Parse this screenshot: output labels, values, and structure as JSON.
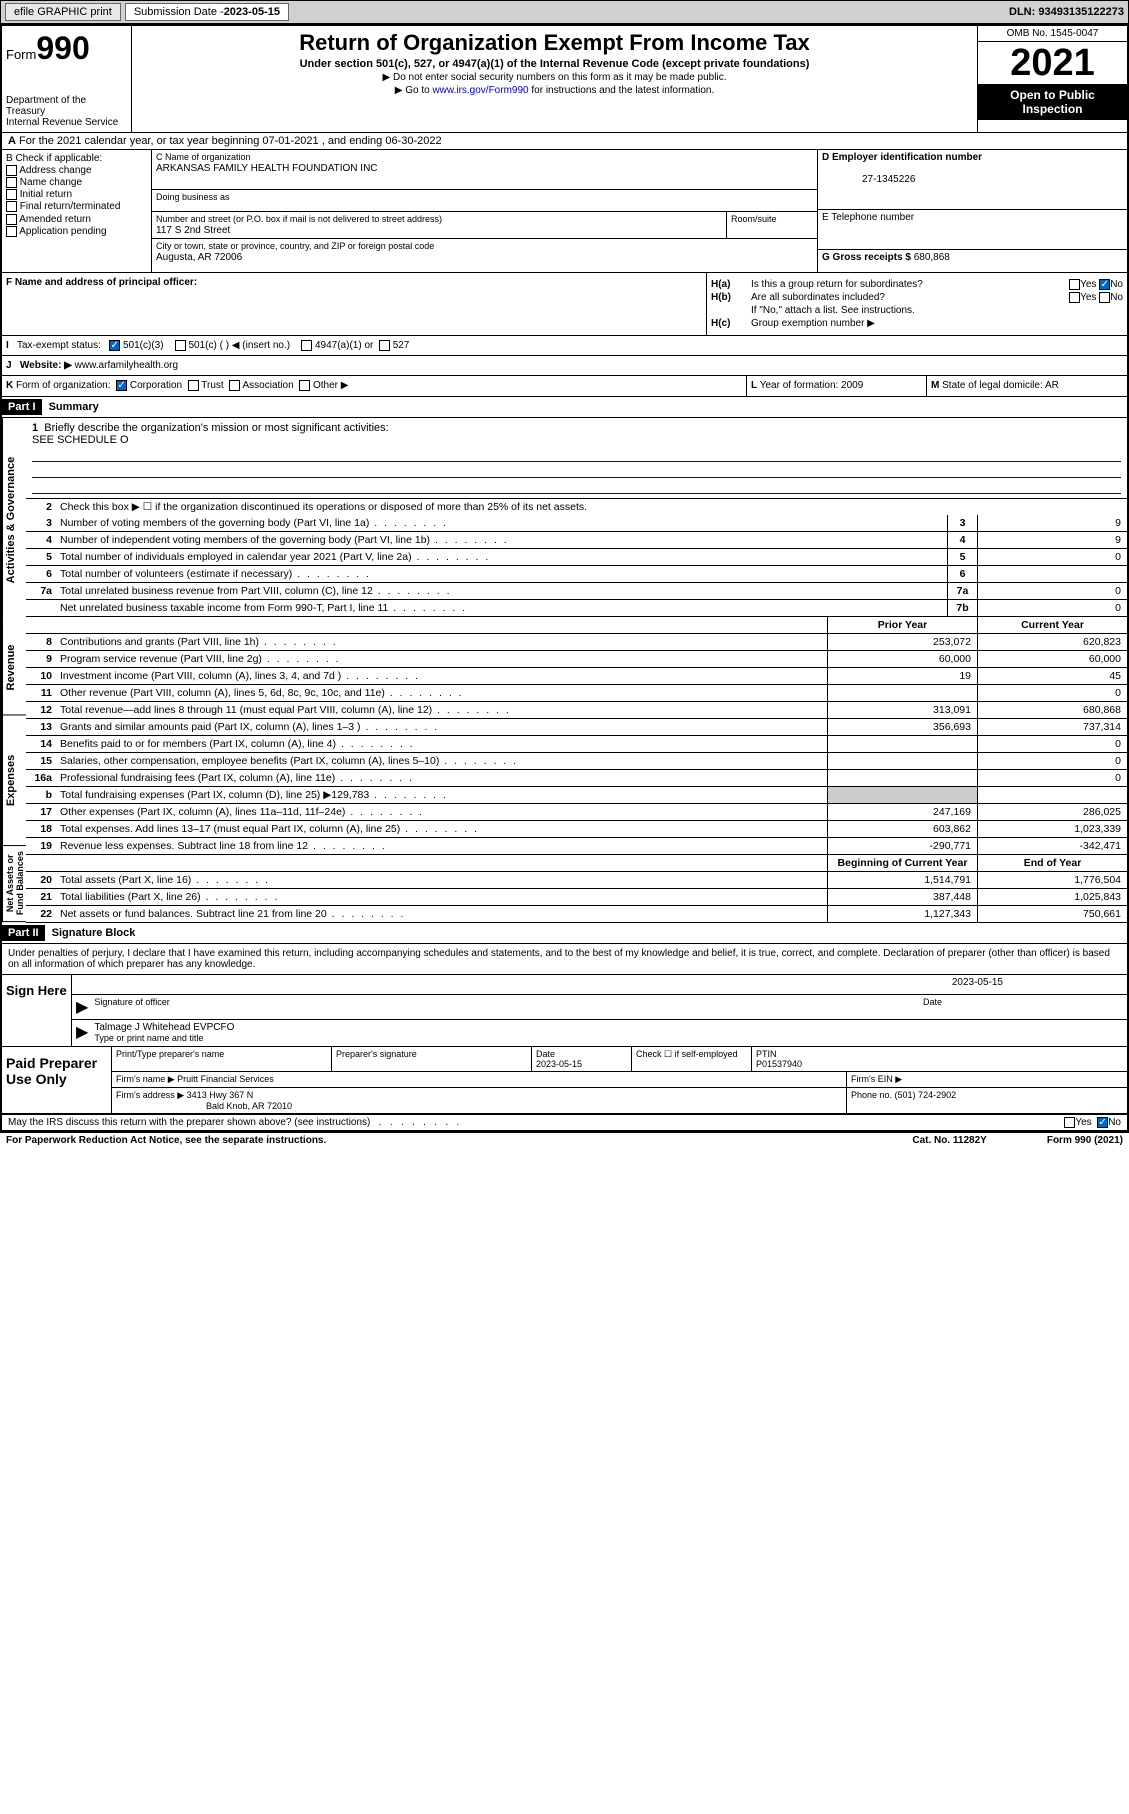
{
  "header": {
    "efile": "efile GRAPHIC print",
    "sub_date_label": "Submission Date - ",
    "sub_date": "2023-05-15",
    "dln": "DLN: 93493135122273"
  },
  "title": {
    "form_label": "Form",
    "form_num": "990",
    "dept": "Department of the Treasury",
    "irs": "Internal Revenue Service",
    "main": "Return of Organization Exempt From Income Tax",
    "sub": "Under section 501(c), 527, or 4947(a)(1) of the Internal Revenue Code (except private foundations)",
    "arrow1": "▶ Do not enter social security numbers on this form as it may be made public.",
    "arrow2_pre": "▶ Go to ",
    "arrow2_link": "www.irs.gov/Form990",
    "arrow2_post": " for instructions and the latest information.",
    "omb": "OMB No. 1545-0047",
    "year": "2021",
    "open_pub": "Open to Public Inspection"
  },
  "row_a": {
    "label": "A",
    "text": "For the 2021 calendar year, or tax year beginning 07-01-2021    , and ending 06-30-2022"
  },
  "section_b": {
    "label": "B Check if applicable:",
    "items": [
      "Address change",
      "Name change",
      "Initial return",
      "Final return/terminated",
      "Amended return",
      "Application pending"
    ]
  },
  "section_c": {
    "name_label": "C Name of organization",
    "name": "ARKANSAS FAMILY HEALTH FOUNDATION INC",
    "dba_label": "Doing business as",
    "street_label": "Number and street (or P.O. box if mail is not delivered to street address)",
    "street": "117 S 2nd Street",
    "room_label": "Room/suite",
    "city_label": "City or town, state or province, country, and ZIP or foreign postal code",
    "city": "Augusta, AR  72006"
  },
  "section_d": {
    "ein_label": "D Employer identification number",
    "ein": "27-1345226",
    "phone_label": "E Telephone number",
    "gross_label": "G Gross receipts $ ",
    "gross": "680,868"
  },
  "section_f": {
    "label": "F  Name and address of principal officer:"
  },
  "section_h": {
    "ha_label": "H(a)",
    "ha_text": "Is this a group return for subordinates?",
    "hb_label": "H(b)",
    "hb_text": "Are all subordinates included?",
    "hb_note": "If \"No,\" attach a list. See instructions.",
    "hc_label": "H(c)",
    "hc_text": "Group exemption number ▶",
    "yes": "Yes",
    "no": "No"
  },
  "section_i": {
    "label": "I",
    "text": "Tax-exempt status:",
    "opts": [
      "501(c)(3)",
      "501(c) (  ) ◀ (insert no.)",
      "4947(a)(1) or",
      "527"
    ]
  },
  "section_j": {
    "label": "J",
    "text": "Website: ▶",
    "value": "www.arfamilyhealth.org"
  },
  "section_k": {
    "label": "K",
    "text": "Form of organization:",
    "opts": [
      "Corporation",
      "Trust",
      "Association",
      "Other ▶"
    ]
  },
  "section_l": {
    "label": "L",
    "text": "Year of formation: 2009"
  },
  "section_m": {
    "label": "M",
    "text": "State of legal domicile: AR"
  },
  "part1": {
    "header": "Part I",
    "title": "Summary",
    "side_labels": [
      "Activities & Governance",
      "Revenue",
      "Expenses",
      "Net Assets or Fund Balances"
    ],
    "mission_num": "1",
    "mission_label": "Briefly describe the organization's mission or most significant activities:",
    "mission_text": "SEE SCHEDULE O",
    "line2_num": "2",
    "line2_text": "Check this box ▶ ☐  if the organization discontinued its operations or disposed of more than 25% of its net assets.",
    "gov_rows": [
      {
        "n": "3",
        "d": "Number of voting members of the governing body (Part VI, line 1a)",
        "box": "3",
        "v": "9"
      },
      {
        "n": "4",
        "d": "Number of independent voting members of the governing body (Part VI, line 1b)",
        "box": "4",
        "v": "9"
      },
      {
        "n": "5",
        "d": "Total number of individuals employed in calendar year 2021 (Part V, line 2a)",
        "box": "5",
        "v": "0"
      },
      {
        "n": "6",
        "d": "Total number of volunteers (estimate if necessary)",
        "box": "6",
        "v": ""
      },
      {
        "n": "7a",
        "d": "Total unrelated business revenue from Part VIII, column (C), line 12",
        "box": "7a",
        "v": "0"
      },
      {
        "n": "",
        "d": "Net unrelated business taxable income from Form 990-T, Part I, line 11",
        "box": "7b",
        "v": "0"
      }
    ],
    "col_headers": {
      "prior": "Prior Year",
      "current": "Current Year"
    },
    "rev_rows": [
      {
        "n": "8",
        "d": "Contributions and grants (Part VIII, line 1h)",
        "p": "253,072",
        "c": "620,823"
      },
      {
        "n": "9",
        "d": "Program service revenue (Part VIII, line 2g)",
        "p": "60,000",
        "c": "60,000"
      },
      {
        "n": "10",
        "d": "Investment income (Part VIII, column (A), lines 3, 4, and 7d )",
        "p": "19",
        "c": "45"
      },
      {
        "n": "11",
        "d": "Other revenue (Part VIII, column (A), lines 5, 6d, 8c, 9c, 10c, and 11e)",
        "p": "",
        "c": "0"
      },
      {
        "n": "12",
        "d": "Total revenue—add lines 8 through 11 (must equal Part VIII, column (A), line 12)",
        "p": "313,091",
        "c": "680,868"
      }
    ],
    "exp_rows": [
      {
        "n": "13",
        "d": "Grants and similar amounts paid (Part IX, column (A), lines 1–3 )",
        "p": "356,693",
        "c": "737,314"
      },
      {
        "n": "14",
        "d": "Benefits paid to or for members (Part IX, column (A), line 4)",
        "p": "",
        "c": "0"
      },
      {
        "n": "15",
        "d": "Salaries, other compensation, employee benefits (Part IX, column (A), lines 5–10)",
        "p": "",
        "c": "0"
      },
      {
        "n": "16a",
        "d": "Professional fundraising fees (Part IX, column (A), line 11e)",
        "p": "",
        "c": "0"
      },
      {
        "n": "b",
        "d": "Total fundraising expenses (Part IX, column (D), line 25) ▶129,783",
        "p": "",
        "c": "",
        "shaded": true
      },
      {
        "n": "17",
        "d": "Other expenses (Part IX, column (A), lines 11a–11d, 11f–24e)",
        "p": "247,169",
        "c": "286,025"
      },
      {
        "n": "18",
        "d": "Total expenses. Add lines 13–17 (must equal Part IX, column (A), line 25)",
        "p": "603,862",
        "c": "1,023,339"
      },
      {
        "n": "19",
        "d": "Revenue less expenses. Subtract line 18 from line 12",
        "p": "-290,771",
        "c": "-342,471"
      }
    ],
    "net_headers": {
      "begin": "Beginning of Current Year",
      "end": "End of Year"
    },
    "net_rows": [
      {
        "n": "20",
        "d": "Total assets (Part X, line 16)",
        "p": "1,514,791",
        "c": "1,776,504"
      },
      {
        "n": "21",
        "d": "Total liabilities (Part X, line 26)",
        "p": "387,448",
        "c": "1,025,843"
      },
      {
        "n": "22",
        "d": "Net assets or fund balances. Subtract line 21 from line 20",
        "p": "1,127,343",
        "c": "750,661"
      }
    ]
  },
  "part2": {
    "header": "Part II",
    "title": "Signature Block",
    "declare": "Under penalties of perjury, I declare that I have examined this return, including accompanying schedules and statements, and to the best of my knowledge and belief, it is true, correct, and complete. Declaration of preparer (other than officer) is based on all information of which preparer has any knowledge.",
    "sign_here": "Sign Here",
    "sig_officer": "Signature of officer",
    "sig_date": "2023-05-15",
    "date_label": "Date",
    "officer_name": "Talmage J Whitehead  EVPCFO",
    "type_name": "Type or print name and title",
    "paid_prep": "Paid Preparer Use Only",
    "prep_name_label": "Print/Type preparer's name",
    "prep_sig_label": "Preparer's signature",
    "prep_date_label": "Date",
    "prep_date": "2023-05-15",
    "check_if": "Check ☐ if self-employed",
    "ptin_label": "PTIN",
    "ptin": "P01537940",
    "firm_name_label": "Firm's name    ▶",
    "firm_name": "Pruitt Financial Services",
    "firm_ein_label": "Firm's EIN ▶",
    "firm_addr_label": "Firm's address ▶",
    "firm_addr1": "3413 Hwy 367 N",
    "firm_addr2": "Bald Knob, AR  72010",
    "firm_phone_label": "Phone no. ",
    "firm_phone": "(501) 724-2902",
    "discuss": "May the IRS discuss this return with the preparer shown above? (see instructions)",
    "paperwork": "For Paperwork Reduction Act Notice, see the separate instructions.",
    "catno": "Cat. No. 11282Y",
    "formno": "Form 990 (2021)"
  }
}
